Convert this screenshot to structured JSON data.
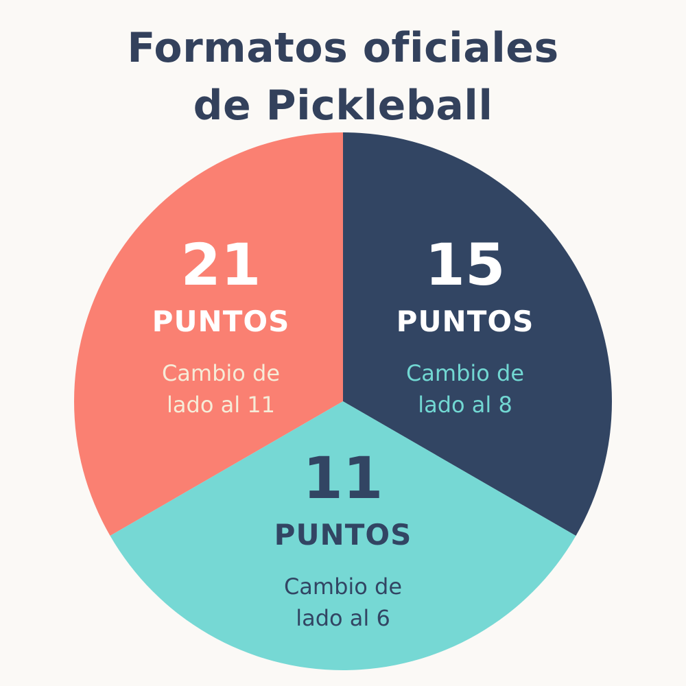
{
  "chart_data": {
    "type": "pie",
    "title_lines": [
      "Formatos oficiales",
      "de Pickleball"
    ],
    "slices": [
      {
        "value": 1,
        "number": "21",
        "unit": "PUNTOS",
        "note_lines": [
          "Cambio de",
          "lado al 11"
        ],
        "color": "#fa8072",
        "text_color": "#ffffff",
        "note_color": "#f6ecd8"
      },
      {
        "value": 1,
        "number": "15",
        "unit": "PUNTOS",
        "note_lines": [
          "Cambio de",
          "lado al 8"
        ],
        "color": "#324563",
        "text_color": "#ffffff",
        "note_color": "#72d8d3"
      },
      {
        "value": 1,
        "number": "11",
        "unit": "PUNTOS",
        "note_lines": [
          "Cambio de",
          "lado al 6"
        ],
        "color": "#76d8d4",
        "text_color": "#324563",
        "note_color": "#324563"
      }
    ],
    "legend": "none",
    "grid": false
  }
}
